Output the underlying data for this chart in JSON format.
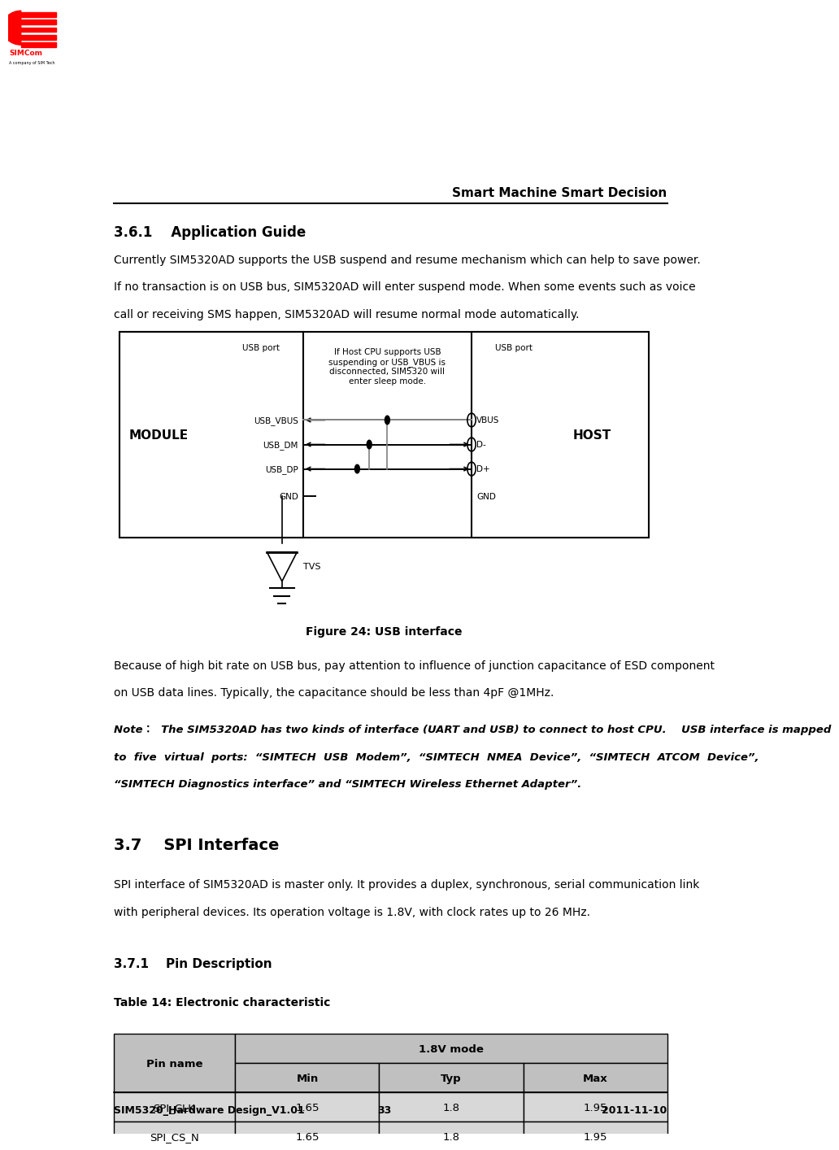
{
  "page_width": 9.55,
  "page_height": 15.61,
  "bg_color": "#ffffff",
  "header_text": "Smart Machine Smart Decision",
  "section_361_title": "3.6.1    Application Guide",
  "para1_lines": [
    "Currently SIM5320AD supports the USB suspend and resume mechanism which can help to save power.",
    "If no transaction is on USB bus, SIM5320AD will enter suspend mode. When some events such as voice",
    "call or receiving SMS happen, SIM5320AD will resume normal mode automatically."
  ],
  "figure_caption": "Figure 24: USB interface",
  "para2_lines": [
    "Because of high bit rate on USB bus, pay attention to influence of junction capacitance of ESD component",
    "on USB data lines. Typically, the capacitance should be less than 4pF @1MHz."
  ],
  "note_lines": [
    "Note：  The SIM5320AD has two kinds of interface (UART and USB) to connect to host CPU.    USB interface is mapped",
    "to  five  virtual  ports:  “SIMTECH  USB  Modem”,  “SIMTECH  NMEA  Device”,  “SIMTECH  ATCOM  Device”,",
    "“SIMTECH Diagnostics interface” and “SIMTECH Wireless Ethernet Adapter”."
  ],
  "section_37_title": "3.7    SPI Interface",
  "para3_lines": [
    "SPI interface of SIM5320AD is master only. It provides a duplex, synchronous, serial communication link",
    "with peripheral devices. Its operation voltage is 1.8V, with clock rates up to 26 MHz."
  ],
  "section_371_title": "3.7.1    Pin Description",
  "table_title": "Table 14: Electronic characteristic",
  "table_header_1v8": "1.8V mode",
  "table_col_headers": [
    "Pin name",
    "Min",
    "Typ",
    "Max"
  ],
  "table_rows": [
    [
      "SPI_CLK",
      "1.65",
      "1.8",
      "1.95"
    ],
    [
      "SPI_CS_N",
      "1.65",
      "1.8",
      "1.95"
    ]
  ],
  "footer_left": "SIM5320_Hardware Design_V1.01",
  "footer_center": "33",
  "footer_right": "2011-11-10",
  "table_header_bg": "#c0c0c0",
  "table_row_bg": [
    "#d8d8d8",
    "#d8d8d8"
  ],
  "diag_note": "If Host CPU supports USB\nsuspending or USB_VBUS is\ndisconnected, SIM5320 will\nenter sleep mode.",
  "signals_left": [
    "USB_VBUS",
    "USB_DM",
    "USB_DP",
    "GND"
  ],
  "signals_right": [
    "VBUS",
    "D-",
    "D+",
    "GND"
  ]
}
